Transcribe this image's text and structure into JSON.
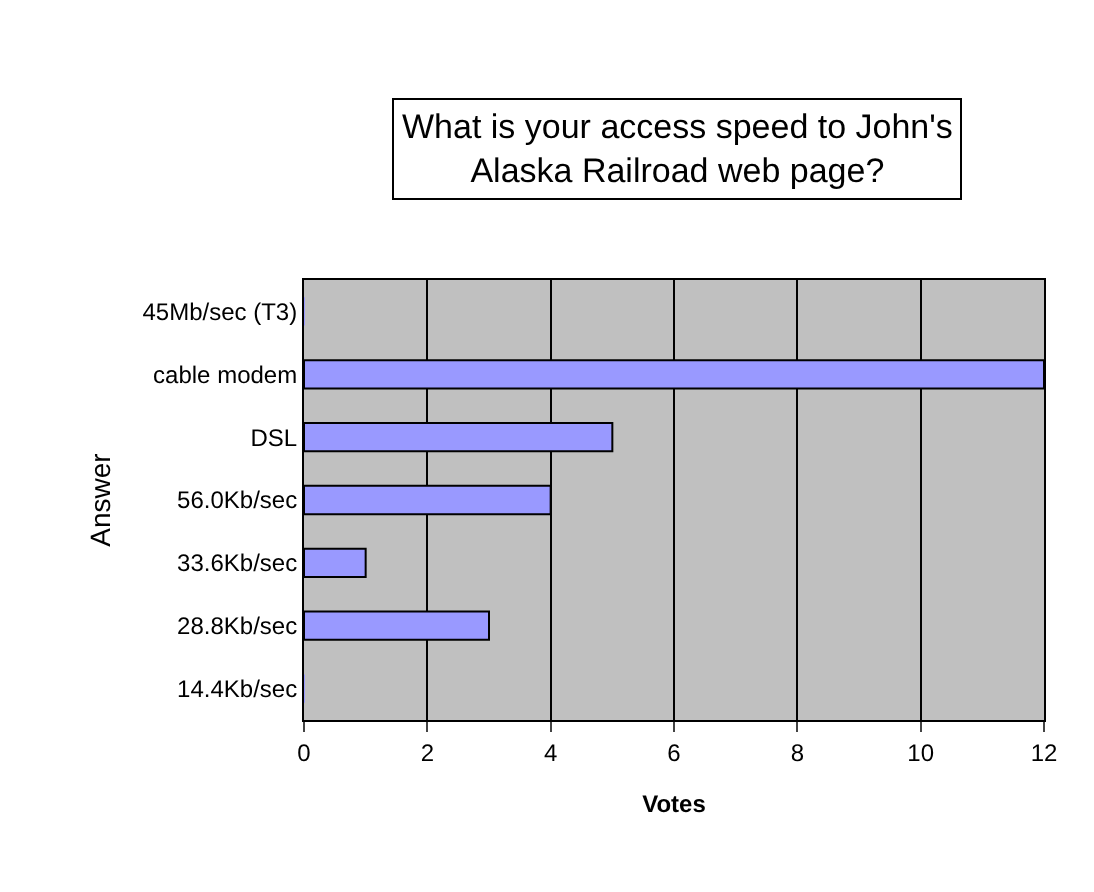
{
  "chart_data": {
    "type": "bar",
    "orientation": "horizontal",
    "title": "What is your access speed to John's\nAlaska Railroad web page?",
    "xlabel": "Votes",
    "ylabel": "Answer",
    "categories": [
      "45Mb/sec (T3)",
      "cable modem",
      "DSL",
      "56.0Kb/sec",
      "33.6Kb/sec",
      "28.8Kb/sec",
      "14.4Kb/sec"
    ],
    "values": [
      0,
      12,
      5,
      4,
      1,
      3,
      0
    ],
    "color": "#9999ff",
    "xlim": [
      0,
      12
    ],
    "xticks": [
      0,
      2,
      4,
      6,
      8,
      10,
      12
    ],
    "grid": "x"
  }
}
